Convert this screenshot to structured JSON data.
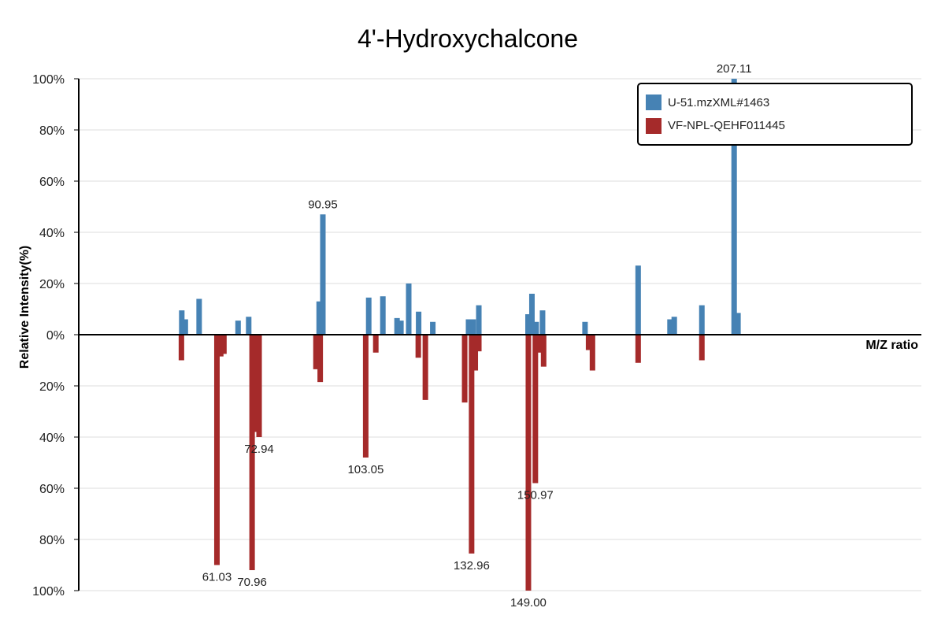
{
  "chart_data": {
    "type": "bar",
    "title": "4'-Hydroxychalcone",
    "xlabel": "M/Z ratio",
    "ylabel": "Relative Intensity(%)",
    "ylim": [
      -100,
      100
    ],
    "xlim": [
      22,
      260
    ],
    "y_tick_labels": [
      "100%",
      "80%",
      "60%",
      "40%",
      "20%",
      "0%",
      "20%",
      "40%",
      "60%",
      "80%",
      "100%"
    ],
    "grid": true,
    "legend_position": "top-right",
    "series": [
      {
        "name": "U-51.mzXML#1463",
        "color": "#4682b4",
        "direction": "up",
        "peaks": [
          {
            "x": 51.1,
            "y": 9.5
          },
          {
            "x": 52.1,
            "y": 6
          },
          {
            "x": 56.0,
            "y": 14
          },
          {
            "x": 67.0,
            "y": 5.5
          },
          {
            "x": 70.0,
            "y": 7
          },
          {
            "x": 89.9,
            "y": 13
          },
          {
            "x": 90.95,
            "y": 47,
            "label": "90.95"
          },
          {
            "x": 103.9,
            "y": 14.5
          },
          {
            "x": 107.9,
            "y": 15
          },
          {
            "x": 111.9,
            "y": 6.5
          },
          {
            "x": 113.0,
            "y": 5.5
          },
          {
            "x": 115.2,
            "y": 20
          },
          {
            "x": 118.0,
            "y": 9
          },
          {
            "x": 122.0,
            "y": 5
          },
          {
            "x": 132.1,
            "y": 6
          },
          {
            "x": 133.4,
            "y": 6
          },
          {
            "x": 135.0,
            "y": 11.5
          },
          {
            "x": 148.9,
            "y": 8
          },
          {
            "x": 150.0,
            "y": 16
          },
          {
            "x": 151.2,
            "y": 5
          },
          {
            "x": 153.0,
            "y": 9.5
          },
          {
            "x": 165.0,
            "y": 5
          },
          {
            "x": 180.0,
            "y": 27
          },
          {
            "x": 189.0,
            "y": 6
          },
          {
            "x": 190.2,
            "y": 7
          },
          {
            "x": 198.0,
            "y": 11.5
          },
          {
            "x": 207.11,
            "y": 100,
            "label": "207.11"
          },
          {
            "x": 208.2,
            "y": 8.5
          }
        ]
      },
      {
        "name": "VF-NPL-QEHF011445",
        "color": "#a52a2a",
        "direction": "down",
        "peaks": [
          {
            "x": 51.0,
            "y": 10
          },
          {
            "x": 61.03,
            "y": 90,
            "label": "61.03"
          },
          {
            "x": 62.1,
            "y": 8.5
          },
          {
            "x": 63.0,
            "y": 7.5
          },
          {
            "x": 70.96,
            "y": 92,
            "label": "70.96"
          },
          {
            "x": 72.0,
            "y": 38
          },
          {
            "x": 72.94,
            "y": 40,
            "label": "72.94"
          },
          {
            "x": 89.0,
            "y": 13.5
          },
          {
            "x": 90.2,
            "y": 18.5
          },
          {
            "x": 103.05,
            "y": 48,
            "label": "103.05"
          },
          {
            "x": 105.9,
            "y": 7
          },
          {
            "x": 117.9,
            "y": 9
          },
          {
            "x": 119.9,
            "y": 25.5
          },
          {
            "x": 131.0,
            "y": 26.5
          },
          {
            "x": 132.96,
            "y": 85.5,
            "label": "132.96"
          },
          {
            "x": 134.0,
            "y": 14
          },
          {
            "x": 135.0,
            "y": 6.5
          },
          {
            "x": 149.0,
            "y": 100,
            "label": "149.00"
          },
          {
            "x": 150.97,
            "y": 58,
            "label": "150.97"
          },
          {
            "x": 152.1,
            "y": 7
          },
          {
            "x": 153.3,
            "y": 12.5
          },
          {
            "x": 166.0,
            "y": 6
          },
          {
            "x": 167.1,
            "y": 14
          },
          {
            "x": 180.0,
            "y": 11
          },
          {
            "x": 198.0,
            "y": 10
          }
        ]
      }
    ]
  }
}
